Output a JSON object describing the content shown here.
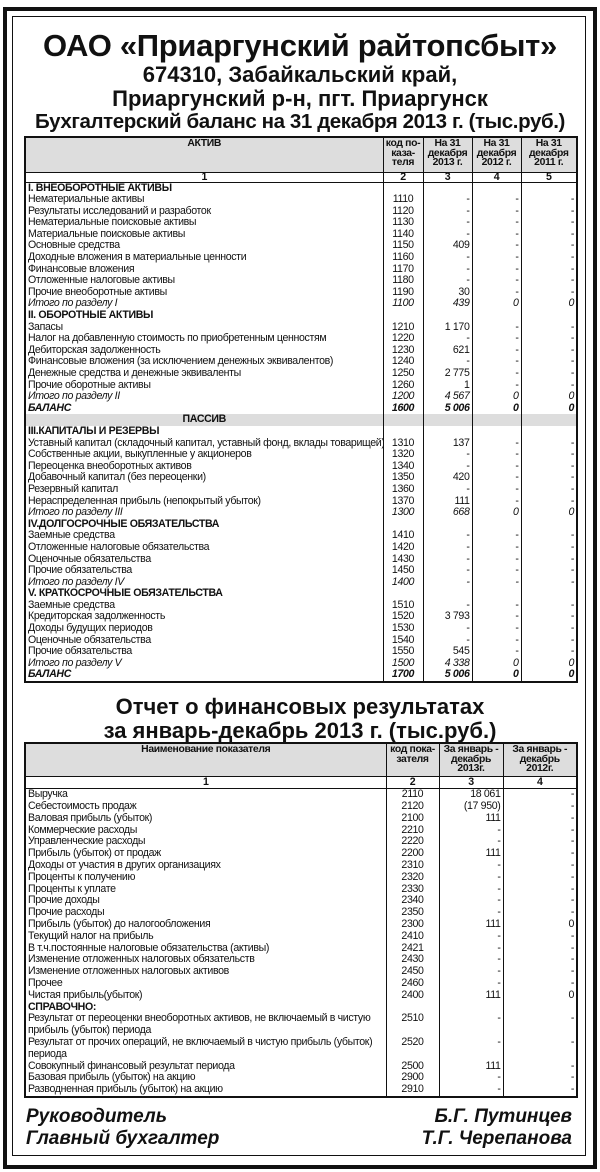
{
  "header": {
    "company": "ОАО «Приаргунский райтопсбыт»",
    "address_line1": "674310, Забайкальский край,",
    "address_line2": "Приаргунский р-н, пгт. Приаргунск",
    "balance_title": "Бухгалтерский баланс на 31 декабря 2013 г. (тыс.руб.)"
  },
  "balance": {
    "columns": [
      "АКТИВ",
      "код по-каза-теля",
      "На 31 декабря 2013 г.",
      "На 31 декабря 2012 г.",
      "На 31 декабря 2011 г."
    ],
    "column_numbers": [
      "1",
      "2",
      "3",
      "4",
      "5"
    ],
    "rows": [
      {
        "style": "section",
        "cells": [
          "I. ВНЕОБОРОТНЫЕ  АКТИВЫ",
          "",
          "",
          "",
          ""
        ]
      },
      {
        "style": "item",
        "cells": [
          "Нематериальные активы",
          "1110",
          "-",
          "-",
          "-"
        ]
      },
      {
        "style": "item",
        "cells": [
          "Результаты исследований и разработок",
          "1120",
          "-",
          "-",
          "-"
        ]
      },
      {
        "style": "item",
        "cells": [
          "Нематериальные поисковые активы",
          "1130",
          "-",
          "-",
          "-"
        ]
      },
      {
        "style": "item",
        "cells": [
          "Материальные поисковые активы",
          "1140",
          "-",
          "-",
          "-"
        ]
      },
      {
        "style": "item",
        "cells": [
          "Основные средства",
          "1150",
          "409",
          "-",
          "-"
        ]
      },
      {
        "style": "item",
        "cells": [
          "Доходные вложения в материальные ценности",
          "1160",
          "-",
          "-",
          "-"
        ]
      },
      {
        "style": "item",
        "cells": [
          "Финансовые вложения",
          "1170",
          "-",
          "-",
          "-"
        ]
      },
      {
        "style": "item",
        "cells": [
          "Отложенные налоговые активы",
          "1180",
          "-",
          "-",
          "-"
        ]
      },
      {
        "style": "item",
        "cells": [
          "Прочие внеоборотные активы",
          "1190",
          "30",
          "-",
          "-"
        ]
      },
      {
        "style": "total",
        "cells": [
          "Итого по разделу I",
          "1100",
          "439",
          "0",
          "0"
        ]
      },
      {
        "style": "section",
        "cells": [
          "II. ОБОРОТНЫЕ  АКТИВЫ",
          "",
          "",
          "",
          ""
        ]
      },
      {
        "style": "item",
        "cells": [
          "Запасы",
          "1210",
          "1 170",
          "-",
          "-"
        ]
      },
      {
        "style": "item",
        "cells": [
          "Налог на добавленную стоимость по приобретенным ценностям",
          "1220",
          "-",
          "-",
          "-"
        ]
      },
      {
        "style": "item",
        "cells": [
          "Дебиторская задолженность",
          "1230",
          "621",
          "-",
          "-"
        ]
      },
      {
        "style": "item",
        "cells": [
          "Финансовые вложения (за исключением денежных эквивалентов)",
          "1240",
          "-",
          "-",
          "-"
        ]
      },
      {
        "style": "item",
        "cells": [
          "Денежные средства и денежные эквиваленты",
          "1250",
          "2 775",
          "-",
          "-"
        ]
      },
      {
        "style": "item",
        "cells": [
          "Прочие оборотные активы",
          "1260",
          "1",
          "-",
          "-"
        ]
      },
      {
        "style": "total",
        "cells": [
          "Итого по разделу II",
          "1200",
          "4 567",
          "0",
          "0"
        ]
      },
      {
        "style": "balance",
        "cells": [
          "БАЛАНС",
          "1600",
          "5 006",
          "0",
          "0"
        ]
      },
      {
        "style": "gray",
        "cells": [
          "ПАССИВ",
          "",
          "",
          "",
          ""
        ]
      },
      {
        "style": "section",
        "cells": [
          "III.КАПИТАЛЫ И РЕЗЕРВЫ",
          "",
          "",
          "",
          ""
        ]
      },
      {
        "style": "item",
        "cells": [
          "Уставный капитал (складочный капитал, уставный фонд, вклады товарищей)",
          "1310",
          "137",
          "-",
          "-"
        ]
      },
      {
        "style": "item",
        "cells": [
          "Собственные акции, выкупленные у акционеров",
          "1320",
          "-",
          "-",
          "-"
        ]
      },
      {
        "style": "item",
        "cells": [
          "Переоценка внеоборотных активов",
          "1340",
          "-",
          "-",
          "-"
        ]
      },
      {
        "style": "item",
        "cells": [
          "Добавочный капитал (без переоценки)",
          "1350",
          "420",
          "-",
          "-"
        ]
      },
      {
        "style": "item",
        "cells": [
          "Резервный капитал",
          "1360",
          "-",
          "-",
          "-"
        ]
      },
      {
        "style": "item",
        "cells": [
          "Нераспределенная прибыль (непокрытый убыток)",
          "1370",
          "111",
          "-",
          "-"
        ]
      },
      {
        "style": "total",
        "cells": [
          "Итого по разделу III",
          "1300",
          "668",
          "0",
          "0"
        ]
      },
      {
        "style": "section",
        "cells": [
          "IV.ДОЛГОСРОЧНЫЕ ОБЯЗАТЕЛЬСТВА",
          "",
          "",
          "",
          ""
        ]
      },
      {
        "style": "item",
        "cells": [
          "Заемные средства",
          "1410",
          "-",
          "-",
          "-"
        ]
      },
      {
        "style": "item",
        "cells": [
          "Отложенные налоговые обязательства",
          "1420",
          "-",
          "-",
          "-"
        ]
      },
      {
        "style": "item",
        "cells": [
          "Оценочные обязательства",
          "1430",
          "-",
          "-",
          "-"
        ]
      },
      {
        "style": "item",
        "cells": [
          "Прочие обязательства",
          "1450",
          "-",
          "-",
          "-"
        ]
      },
      {
        "style": "total",
        "cells": [
          "Итого по разделу IV",
          "1400",
          "-",
          "-",
          "-"
        ]
      },
      {
        "style": "section",
        "cells": [
          "V. КРАТКОСРОЧНЫЕ  ОБЯЗАТЕЛЬСТВА",
          "",
          "",
          "",
          ""
        ]
      },
      {
        "style": "item",
        "cells": [
          "Заемные средства",
          "1510",
          "-",
          "-",
          "-"
        ]
      },
      {
        "style": "item",
        "cells": [
          "Кредиторская задолженность",
          "1520",
          "3 793",
          "-",
          "-"
        ]
      },
      {
        "style": "item",
        "cells": [
          "Доходы будущих периодов",
          "1530",
          "-",
          "-",
          "-"
        ]
      },
      {
        "style": "item",
        "cells": [
          "Оценочные обязательства",
          "1540",
          "-",
          "-",
          "-"
        ]
      },
      {
        "style": "item",
        "cells": [
          "Прочие обязательства",
          "1550",
          "545",
          "-",
          "-"
        ]
      },
      {
        "style": "total",
        "cells": [
          "Итого по разделу V",
          "1500",
          "4 338",
          "0",
          "0"
        ]
      },
      {
        "style": "balance",
        "cells": [
          "БАЛАНС",
          "1700",
          "5 006",
          "0",
          "0"
        ]
      }
    ]
  },
  "financial": {
    "title_line1": "Отчет о финансовых результатах",
    "title_line2": "за январь-декабрь 2013 г. (тыс.руб.)",
    "columns": [
      "Наименование показателя",
      "код пока-зателя",
      "За январь - декабрь 2013г.",
      "За январь - декабрь 2012г."
    ],
    "column_numbers": [
      "1",
      "2",
      "3",
      "4"
    ],
    "rows": [
      {
        "style": "item",
        "cells": [
          "Выручка",
          "2110",
          "18 061",
          "-"
        ]
      },
      {
        "style": "item",
        "cells": [
          "Себестоимость продаж",
          "2120",
          "(17 950)",
          "-"
        ]
      },
      {
        "style": "item",
        "cells": [
          "Валовая прибыль (убыток)",
          "2100",
          "111",
          "-"
        ]
      },
      {
        "style": "item",
        "cells": [
          "Коммерческие расходы",
          "2210",
          "-",
          "-"
        ]
      },
      {
        "style": "item",
        "cells": [
          "Управленческие расходы",
          "2220",
          "-",
          "-"
        ]
      },
      {
        "style": "item",
        "cells": [
          "Прибыль (убыток) от продаж",
          "2200",
          "111",
          "-"
        ]
      },
      {
        "style": "item",
        "cells": [
          "Доходы от участия в других организациях",
          "2310",
          "-",
          "-"
        ]
      },
      {
        "style": "item",
        "cells": [
          "Проценты к получению",
          "2320",
          "-",
          "-"
        ]
      },
      {
        "style": "item",
        "cells": [
          "Проценты к уплате",
          "2330",
          "-",
          "-"
        ]
      },
      {
        "style": "item",
        "cells": [
          "Прочие доходы",
          "2340",
          "-",
          "-"
        ]
      },
      {
        "style": "item",
        "cells": [
          "Прочие расходы",
          "2350",
          "-",
          "-"
        ]
      },
      {
        "style": "item",
        "cells": [
          "Прибыль (убыток) до налогообложения",
          "2300",
          "111",
          "0"
        ]
      },
      {
        "style": "item",
        "cells": [
          "Текущий налог на прибыль",
          "2410",
          "-",
          "-"
        ]
      },
      {
        "style": "item",
        "cells": [
          "В т.ч.постоянные налоговые обязательства (активы)",
          "2421",
          "-",
          "-"
        ]
      },
      {
        "style": "item",
        "cells": [
          "Изменение отложенных налоговых обязательств",
          "2430",
          "-",
          "-"
        ]
      },
      {
        "style": "item",
        "cells": [
          "Изменение отложенных налоговых активов",
          "2450",
          "-",
          "-"
        ]
      },
      {
        "style": "item",
        "cells": [
          "Прочее",
          "2460",
          "-",
          "-"
        ]
      },
      {
        "style": "item",
        "cells": [
          "Чистая прибыль(убыток)",
          "2400",
          "111",
          "0"
        ]
      },
      {
        "style": "section",
        "cells": [
          "СПРАВОЧНО:",
          "",
          "",
          ""
        ]
      },
      {
        "style": "dbl",
        "cells": [
          "Результат от переоценки внеоборотных активов, не включаемый в чистую прибыль (убыток) периода",
          "2510",
          "-",
          "-"
        ]
      },
      {
        "style": "dbl",
        "cells": [
          "Результат от прочих операций, не включаемый в чистую прибыль (убыток) периода",
          "2520",
          "-",
          "-"
        ]
      },
      {
        "style": "item",
        "cells": [
          "Совокупный финансовый результат периода",
          "2500",
          "111",
          "-"
        ]
      },
      {
        "style": "item",
        "cells": [
          "Базовая прибыль (убыток) на акцию",
          "2900",
          "-",
          "-"
        ]
      },
      {
        "style": "item",
        "cells": [
          "Разводненная прибыль (убыток) на акцию",
          "2910",
          "-",
          "-"
        ]
      }
    ]
  },
  "signatures": {
    "director_title": "Руководитель",
    "director_name": "Б.Г. Путинцев",
    "accountant_title": "Главный бухгалтер",
    "accountant_name": "Т.Г. Черепанова"
  }
}
